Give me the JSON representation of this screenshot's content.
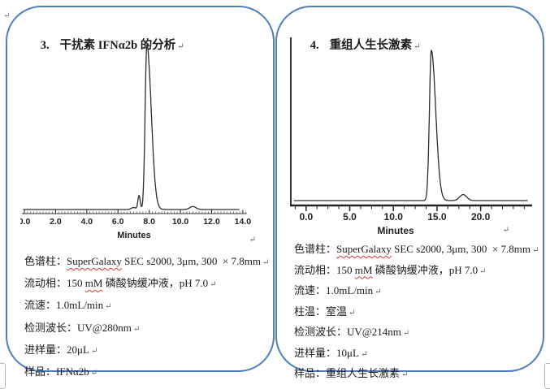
{
  "page": {
    "background": "#ffffff",
    "panel_border_color": "#4e7ebe",
    "text_color": "#1b1b1b",
    "squiggle_color": "#e03131",
    "paragraph_mark": "↵"
  },
  "panels": [
    {
      "title_number": "3.",
      "title": "干扰素 IFNα2b 的分析",
      "specs": [
        {
          "label": "色谱柱：",
          "segments": [
            {
              "t": "SuperGalaxy",
              "sq": true
            },
            {
              "t": " SEC s2000, 3μm, 300  × 7.8mm"
            }
          ]
        },
        {
          "label": "流动相：",
          "segments": [
            {
              "t": "150 "
            },
            {
              "t": "mM",
              "sq": true
            },
            {
              "t": " 磷酸钠缓冲液，pH 7.0"
            }
          ]
        },
        {
          "label": "流速：",
          "segments": [
            {
              "t": "1.0mL/min"
            }
          ]
        },
        {
          "label": "检测波长：",
          "segments": [
            {
              "t": "UV@280nm"
            }
          ]
        },
        {
          "label": "进样量：",
          "segments": [
            {
              "t": "20μL"
            }
          ]
        },
        {
          "label": "样品：",
          "segments": [
            {
              "t": "IFNα2b"
            }
          ]
        }
      ]
    },
    {
      "title_number": "4.",
      "title": "重组人生长激素",
      "specs": [
        {
          "label": "色谱柱：",
          "segments": [
            {
              "t": "SuperGalaxy",
              "sq": true
            },
            {
              "t": " SEC s2000, 3μm, 300  × 7.8mm"
            }
          ]
        },
        {
          "label": "流动相：",
          "segments": [
            {
              "t": "150 "
            },
            {
              "t": "mM",
              "sq": true
            },
            {
              "t": " 磷酸钠缓冲液，pH 7.0"
            }
          ]
        },
        {
          "label": "流速：",
          "segments": [
            {
              "t": "1.0mL/min"
            }
          ]
        },
        {
          "label": "柱温：",
          "segments": [
            {
              "t": "室温"
            }
          ]
        },
        {
          "label": "检测波长：",
          "segments": [
            {
              "t": "UV@214nm"
            }
          ]
        },
        {
          "label": "进样量：",
          "segments": [
            {
              "t": "10μL"
            }
          ]
        },
        {
          "label": "样品：",
          "segments": [
            {
              "t": "重组人生长激素"
            }
          ]
        }
      ]
    }
  ],
  "chart_data": [
    {
      "type": "line",
      "title": "",
      "xlabel": "Minutes",
      "ylabel": "",
      "xlim": [
        0,
        14.3
      ],
      "ylim": [
        0,
        1.05
      ],
      "grid": false,
      "legend": false,
      "axis_style": "ruler",
      "ticks": [
        {
          "v": 0,
          "t": "0.0"
        },
        {
          "v": 2,
          "t": "2.0"
        },
        {
          "v": 4,
          "t": "4.0"
        },
        {
          "v": 6,
          "t": "6.0"
        },
        {
          "v": 8,
          "t": "8.0"
        },
        {
          "v": 10,
          "t": "10.0"
        },
        {
          "v": 12,
          "t": "12.0"
        },
        {
          "v": 14,
          "t": "14.0"
        }
      ],
      "series": [
        {
          "name": "UV@280nm signal",
          "peaks": [
            {
              "rt": 7.0,
              "h": 0.012,
              "w": 0.15
            },
            {
              "rt": 7.35,
              "h": 0.085,
              "w": 0.075
            },
            {
              "rt": 7.85,
              "h": 1.0,
              "wl": 0.11,
              "wr": 0.28
            },
            {
              "rt": 10.8,
              "h": 0.018,
              "w": 0.2
            }
          ]
        }
      ]
    },
    {
      "type": "line",
      "title": "",
      "xlabel": "Minutes",
      "ylabel": "",
      "xlim": [
        -1.75,
        25.9
      ],
      "ylim": [
        0,
        1.05
      ],
      "grid": false,
      "legend": false,
      "axis_style": "frame",
      "ticks": [
        {
          "v": 0,
          "t": "0.0"
        },
        {
          "v": 5,
          "t": "5.0"
        },
        {
          "v": 10,
          "t": "10.0"
        },
        {
          "v": 15,
          "t": "15.0"
        },
        {
          "v": 20,
          "t": "20.0"
        }
      ],
      "series": [
        {
          "name": "UV@214nm signal",
          "peaks": [
            {
              "rt": 14.35,
              "h": 1.0,
              "wl": 0.22,
              "wr": 0.5
            },
            {
              "rt": 18.0,
              "h": 0.04,
              "w": 0.4
            }
          ]
        }
      ]
    }
  ]
}
